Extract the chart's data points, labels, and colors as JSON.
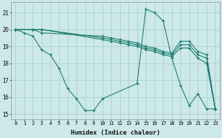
{
  "xlabel": "Humidex (Indice chaleur)",
  "bg_color": "#cce8e8",
  "grid_color": "#aacfcf",
  "line_color": "#1a7a6e",
  "xlim": [
    -0.5,
    23.5
  ],
  "ylim": [
    14.7,
    21.6
  ],
  "yticks": [
    15,
    16,
    17,
    18,
    19,
    20,
    21
  ],
  "xticks": [
    0,
    1,
    2,
    3,
    4,
    5,
    6,
    7,
    8,
    9,
    10,
    11,
    12,
    13,
    14,
    15,
    16,
    17,
    18,
    19,
    20,
    21,
    22,
    23
  ],
  "lines": [
    {
      "x": [
        0,
        1,
        2,
        3,
        4,
        5,
        6,
        7,
        8,
        9,
        10,
        14,
        15,
        16,
        17,
        18,
        19,
        20,
        21,
        22,
        23
      ],
      "y": [
        20.0,
        19.8,
        19.6,
        18.8,
        18.5,
        17.7,
        16.5,
        15.9,
        15.2,
        15.2,
        15.9,
        16.8,
        21.2,
        21.0,
        20.5,
        18.3,
        16.7,
        15.5,
        16.2,
        15.3,
        15.3
      ]
    },
    {
      "x": [
        0,
        2,
        3,
        10,
        11,
        12,
        13,
        14,
        15,
        16,
        17,
        18,
        19,
        20,
        21,
        22,
        23
      ],
      "y": [
        20.0,
        20.0,
        19.8,
        19.6,
        19.5,
        19.4,
        19.3,
        19.2,
        19.0,
        18.9,
        18.7,
        18.6,
        19.3,
        19.3,
        18.7,
        18.5,
        15.3
      ]
    },
    {
      "x": [
        0,
        2,
        3,
        10,
        11,
        12,
        13,
        14,
        15,
        16,
        17,
        18,
        19,
        20,
        21,
        22,
        23
      ],
      "y": [
        20.0,
        20.0,
        20.0,
        19.5,
        19.4,
        19.3,
        19.2,
        19.1,
        18.9,
        18.8,
        18.6,
        18.5,
        19.1,
        19.1,
        18.5,
        18.3,
        15.3
      ]
    },
    {
      "x": [
        0,
        2,
        3,
        10,
        11,
        12,
        13,
        14,
        15,
        16,
        17,
        18,
        19,
        20,
        21,
        22,
        23
      ],
      "y": [
        20.0,
        20.0,
        20.0,
        19.4,
        19.3,
        19.2,
        19.1,
        19.0,
        18.8,
        18.7,
        18.5,
        18.4,
        18.9,
        18.9,
        18.3,
        18.0,
        15.3
      ]
    }
  ]
}
